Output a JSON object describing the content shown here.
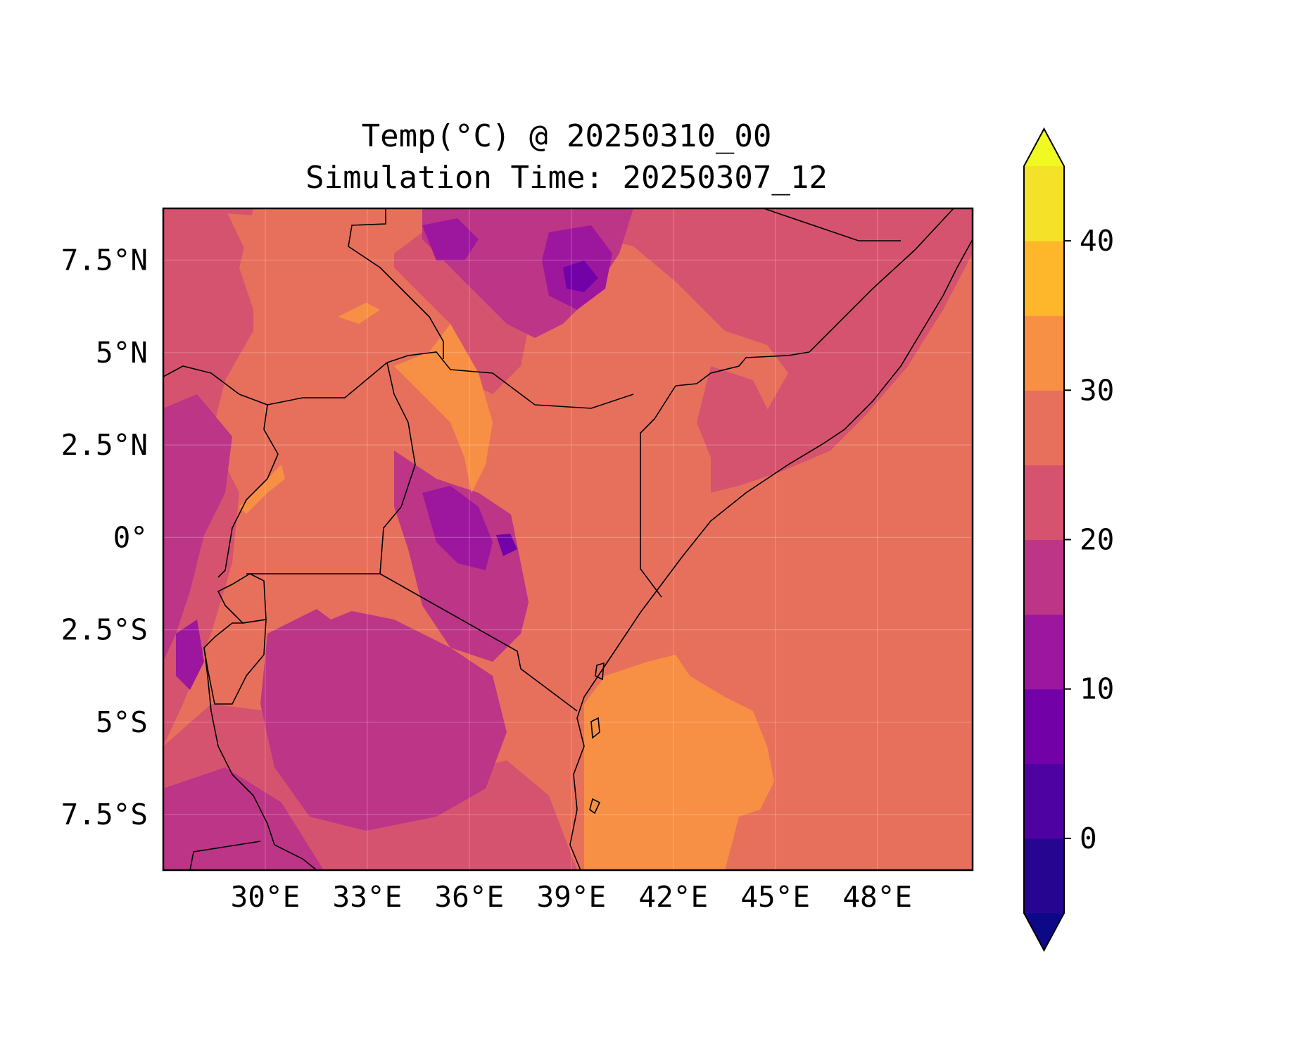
{
  "title_line1": "Temp(°C) @ 20250310_00",
  "title_line2": "Simulation Time: 20250307_12",
  "map": {
    "extent": {
      "lon_min": 27.0,
      "lon_max": 50.8,
      "lat_min": -9.0,
      "lat_max": 8.9
    },
    "x_ticks": [
      {
        "lon": 30,
        "label": "30°E"
      },
      {
        "lon": 33,
        "label": "33°E"
      },
      {
        "lon": 36,
        "label": "36°E"
      },
      {
        "lon": 39,
        "label": "39°E"
      },
      {
        "lon": 42,
        "label": "42°E"
      },
      {
        "lon": 45,
        "label": "45°E"
      },
      {
        "lon": 48,
        "label": "48°E"
      }
    ],
    "y_ticks": [
      {
        "lat": 7.5,
        "label": "7.5°N"
      },
      {
        "lat": 5,
        "label": "5°N"
      },
      {
        "lat": 2.5,
        "label": "2.5°N"
      },
      {
        "lat": 0,
        "label": "0°"
      },
      {
        "lat": -2.5,
        "label": "2.5°S"
      },
      {
        "lat": -5,
        "label": "5°S"
      },
      {
        "lat": -7.5,
        "label": "7.5°S"
      }
    ],
    "gridlines": true
  },
  "colorbar": {
    "levels": [
      -5,
      0,
      5,
      10,
      15,
      20,
      25,
      30,
      35,
      40,
      45
    ],
    "colors": [
      "#260591",
      "#4f02a2",
      "#7201a8",
      "#9c179e",
      "#bc3587",
      "#d5536f",
      "#e7705c",
      "#f79044",
      "#feb72b",
      "#f3e228"
    ],
    "under_color": "#0d0887",
    "over_color": "#f0f921",
    "extend": "both",
    "ticks": [
      {
        "value": 0,
        "label": "0"
      },
      {
        "value": 10,
        "label": "10"
      },
      {
        "value": 20,
        "label": "20"
      },
      {
        "value": 30,
        "label": "30"
      },
      {
        "value": 40,
        "label": "40"
      }
    ]
  }
}
